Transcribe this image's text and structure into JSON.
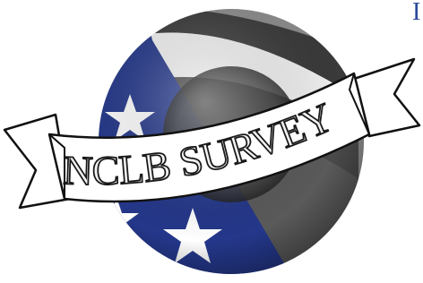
{
  "logo": {
    "text": "NCLB SURVEY"
  },
  "corner_text": "I"
}
